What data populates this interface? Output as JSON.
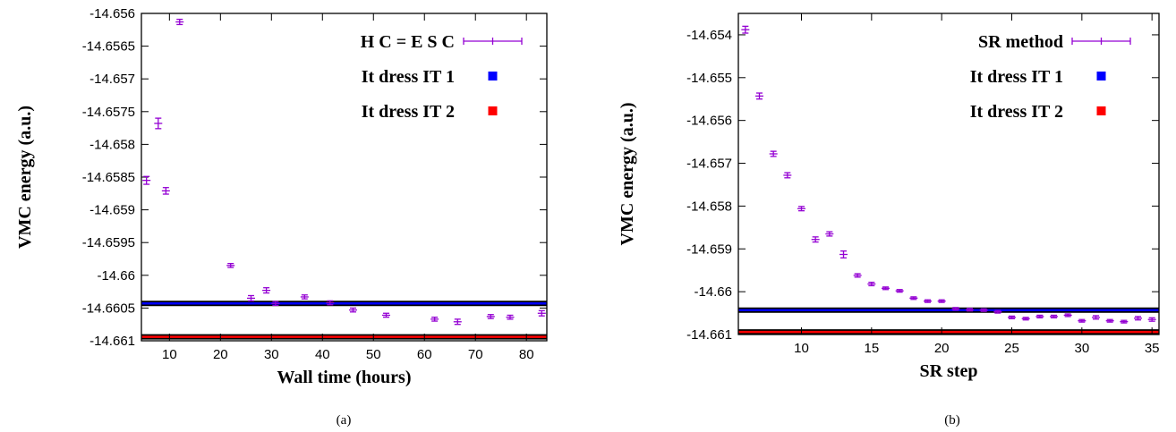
{
  "chart_data": [
    {
      "type": "scatter",
      "caption": "(a)",
      "xlabel": "Wall time (hours)",
      "ylabel": "VMC energy (a.u.)",
      "xlim": [
        4.5,
        84
      ],
      "ylim": [
        -14.661,
        -14.656
      ],
      "xticks": [
        {
          "v": 10,
          "t": "10"
        },
        {
          "v": 20,
          "t": "20"
        },
        {
          "v": 30,
          "t": "30"
        },
        {
          "v": 40,
          "t": "40"
        },
        {
          "v": 50,
          "t": "50"
        },
        {
          "v": 60,
          "t": "60"
        },
        {
          "v": 70,
          "t": "70"
        },
        {
          "v": 80,
          "t": "80"
        }
      ],
      "yticks": [
        {
          "v": -14.656,
          "t": "-14.656"
        },
        {
          "v": -14.6565,
          "t": "-14.6565"
        },
        {
          "v": -14.657,
          "t": "-14.657"
        },
        {
          "v": -14.6575,
          "t": "-14.6575"
        },
        {
          "v": -14.658,
          "t": "-14.658"
        },
        {
          "v": -14.6585,
          "t": "-14.6585"
        },
        {
          "v": -14.659,
          "t": "-14.659"
        },
        {
          "v": -14.6595,
          "t": "-14.6595"
        },
        {
          "v": -14.66,
          "t": "-14.66"
        },
        {
          "v": -14.6605,
          "t": "-14.6605"
        },
        {
          "v": -14.661,
          "t": "-14.661"
        }
      ],
      "grid": false,
      "legend_position": "top-right",
      "series": [
        {
          "name": "H C = E S C",
          "color": "#9400d3",
          "style": "errorbar",
          "x": [
            5.5,
            7.8,
            9.3,
            12.0,
            22.0,
            26.0,
            29.0,
            30.8,
            36.5,
            41.5,
            46.0,
            52.5,
            62.0,
            66.5,
            73.0,
            76.8,
            83.0
          ],
          "y": [
            -14.65855,
            -14.65768,
            -14.65871,
            -14.65613,
            -14.65985,
            -14.66035,
            -14.66023,
            -14.66043,
            -14.66033,
            -14.66042,
            -14.66053,
            -14.66061,
            -14.66067,
            -14.66071,
            -14.66063,
            -14.66064,
            -14.66058
          ],
          "err": [
            6e-05,
            8e-05,
            5e-05,
            4e-05,
            3e-05,
            4e-05,
            4e-05,
            3e-05,
            3e-05,
            3e-05,
            3e-05,
            3e-05,
            3e-05,
            4e-05,
            3e-05,
            3e-05,
            4e-05
          ]
        },
        {
          "name": "It dress IT 1",
          "color": "#0000ff",
          "style": "hline",
          "y": -14.66043
        },
        {
          "name": "It dress IT 2",
          "color": "#ff0000",
          "style": "hline",
          "y": -14.66094
        }
      ]
    },
    {
      "type": "scatter",
      "caption": "(b)",
      "xlabel": "SR step",
      "ylabel": "VMC energy (a.u.)",
      "xlim": [
        5.5,
        35.5
      ],
      "ylim": [
        -14.661,
        -14.6535
      ],
      "xticks": [
        {
          "v": 10,
          "t": "10"
        },
        {
          "v": 15,
          "t": "15"
        },
        {
          "v": 20,
          "t": "20"
        },
        {
          "v": 25,
          "t": "25"
        },
        {
          "v": 30,
          "t": "30"
        },
        {
          "v": 35,
          "t": "35"
        }
      ],
      "yticks": [
        {
          "v": -14.654,
          "t": "-14.654"
        },
        {
          "v": -14.655,
          "t": "-14.655"
        },
        {
          "v": -14.656,
          "t": "-14.656"
        },
        {
          "v": -14.657,
          "t": "-14.657"
        },
        {
          "v": -14.658,
          "t": "-14.658"
        },
        {
          "v": -14.659,
          "t": "-14.659"
        },
        {
          "v": -14.66,
          "t": "-14.66"
        },
        {
          "v": -14.661,
          "t": "-14.661"
        }
      ],
      "grid": false,
      "legend_position": "top-right",
      "series": [
        {
          "name": "SR method",
          "color": "#9400d3",
          "style": "errorbar",
          "x": [
            6,
            7,
            8,
            9,
            10,
            11,
            12,
            13,
            14,
            15,
            16,
            17,
            18,
            19,
            20,
            21,
            22,
            23,
            24,
            25,
            26,
            27,
            28,
            29,
            30,
            31,
            32,
            33,
            34,
            35
          ],
          "y": [
            -14.65388,
            -14.65543,
            -14.65678,
            -14.65728,
            -14.65806,
            -14.65878,
            -14.65865,
            -14.65913,
            -14.65962,
            -14.65982,
            -14.65992,
            -14.65998,
            -14.66015,
            -14.66022,
            -14.66022,
            -14.6604,
            -14.66042,
            -14.66043,
            -14.66047,
            -14.6606,
            -14.66063,
            -14.66058,
            -14.66058,
            -14.66055,
            -14.66068,
            -14.6606,
            -14.66068,
            -14.6607,
            -14.66062,
            -14.66065
          ],
          "err": [
            8e-05,
            7e-05,
            6e-05,
            6e-05,
            5e-05,
            6e-05,
            5e-05,
            8e-05,
            4e-05,
            4e-05,
            3e-05,
            3e-05,
            3e-05,
            3e-05,
            3e-05,
            3e-05,
            3e-05,
            3e-05,
            3e-05,
            3e-05,
            3e-05,
            3e-05,
            3e-05,
            3e-05,
            3e-05,
            4e-05,
            3e-05,
            3e-05,
            4e-05,
            4e-05
          ]
        },
        {
          "name": "It dress IT 1",
          "color": "#0000ff",
          "style": "hline",
          "y": -14.66043
        },
        {
          "name": "It dress IT 2",
          "color": "#ff0000",
          "style": "hline",
          "y": -14.66094
        }
      ]
    }
  ]
}
